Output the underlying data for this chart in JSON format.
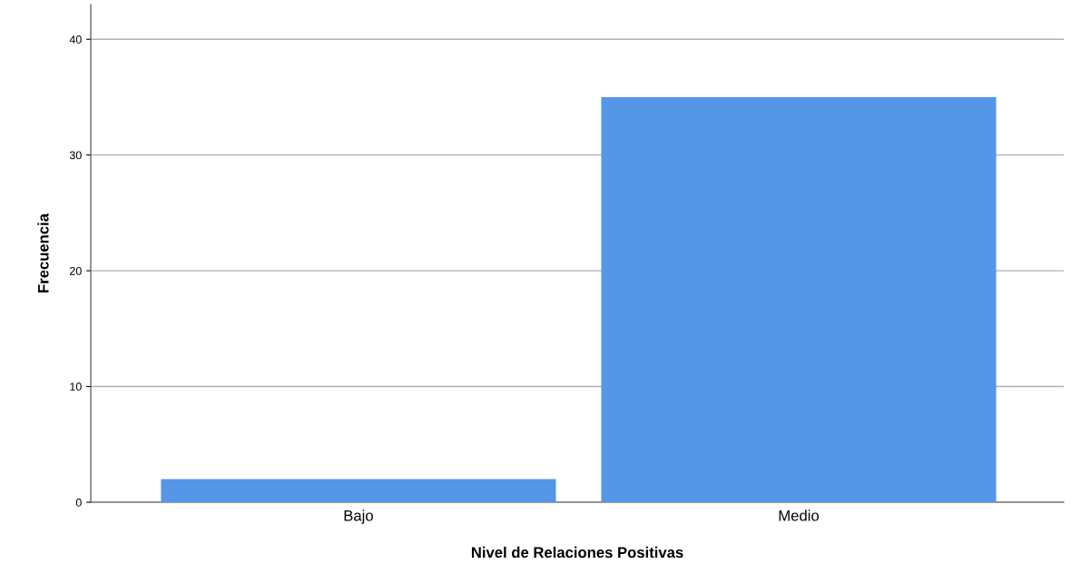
{
  "chart_data": {
    "type": "bar",
    "xlabel": "Nivel de Relaciones Positivas",
    "ylabel": "Frecuencia",
    "categories": [
      "Bajo",
      "Medio"
    ],
    "values": [
      2,
      35
    ],
    "color": "#5596e6",
    "ylim": [
      0,
      43
    ],
    "yticks": [
      0,
      10,
      20,
      30,
      40
    ],
    "grid": "y",
    "legend": false
  }
}
